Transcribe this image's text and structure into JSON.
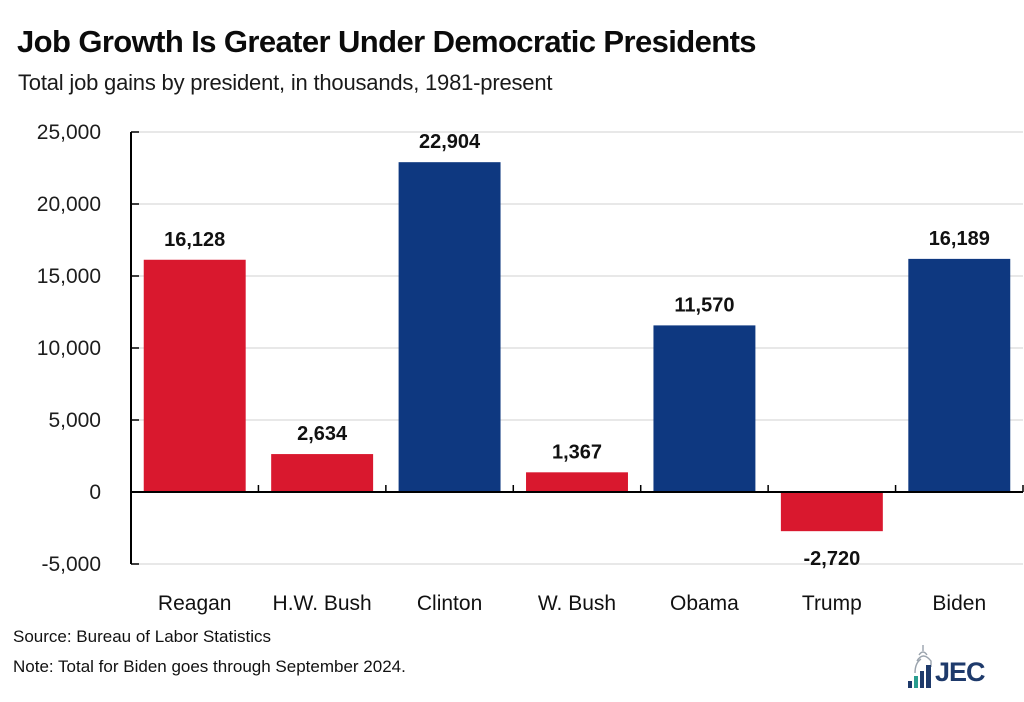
{
  "header": {
    "title": "Job Growth Is Greater Under Democratic Presidents",
    "subtitle": "Total job gains by president, in thousands, 1981-present"
  },
  "footer": {
    "source": "Source: Bureau of Labor Statistics",
    "note": "Note: Total for Biden goes through September 2024.",
    "logo_text": "JEC",
    "logo_icon": "capitol-dome-bar-chart-icon"
  },
  "colors": {
    "republican": "#d9182e",
    "democratic": "#0e3880",
    "gridline": "#d9d9d9",
    "axis": "#000000",
    "logo": "#1e3a6b",
    "logo_accent": "#2a9d8f"
  },
  "chart_data": {
    "type": "bar",
    "title": "Job Growth Is Greater Under Democratic Presidents",
    "subtitle": "Total job gains by president, in thousands, 1981-present",
    "xlabel": "",
    "ylabel": "",
    "categories": [
      "Reagan",
      "H.W. Bush",
      "Clinton",
      "W. Bush",
      "Obama",
      "Trump",
      "Biden"
    ],
    "values": [
      16128,
      2634,
      22904,
      1367,
      11570,
      -2720,
      16189
    ],
    "data_labels": [
      "16,128",
      "2,634",
      "22,904",
      "1,367",
      "11,570",
      "-2,720",
      "16,189"
    ],
    "party": [
      "republican",
      "republican",
      "democratic",
      "republican",
      "democratic",
      "republican",
      "democratic"
    ],
    "ylim": [
      -5000,
      25000
    ],
    "yticks": [
      -5000,
      0,
      5000,
      10000,
      15000,
      20000,
      25000
    ],
    "ytick_labels": [
      "-5,000",
      "0",
      "5,000",
      "10,000",
      "15,000",
      "20,000",
      "25,000"
    ],
    "grid": true,
    "legend": "none"
  }
}
